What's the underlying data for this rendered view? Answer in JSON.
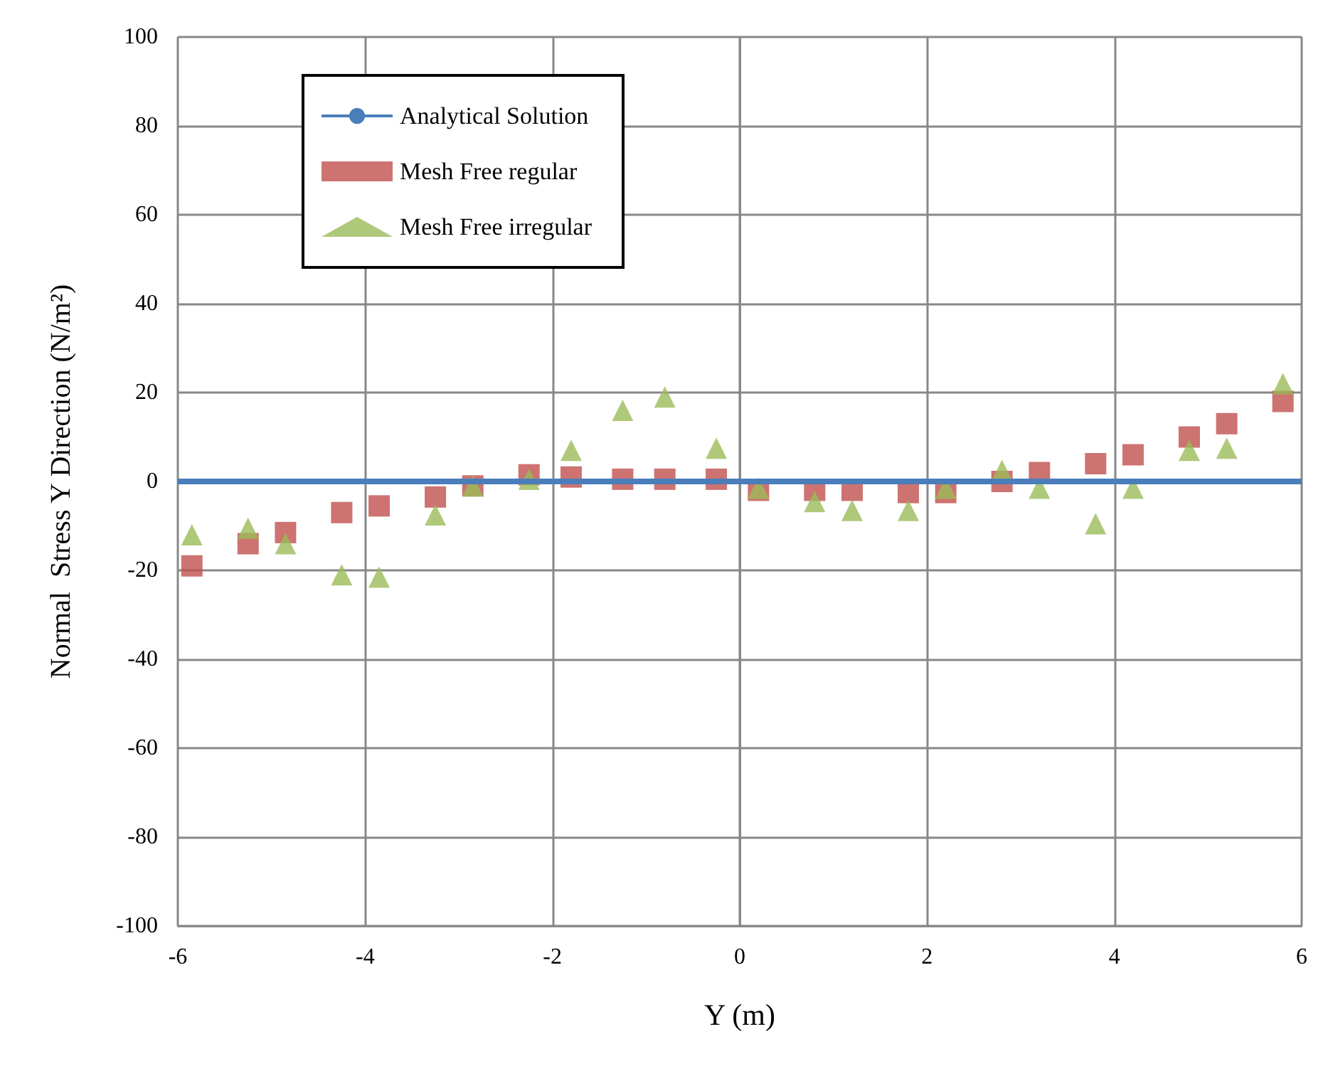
{
  "chart_data": {
    "type": "scatter",
    "xlabel": "Y (m)",
    "ylabel": "Normal  Stress Y Direction (N/m²)",
    "xlim": [
      -6,
      6
    ],
    "xticks": [
      -6,
      -4,
      -2,
      0,
      2,
      4,
      6
    ],
    "ylim": [
      -100,
      100
    ],
    "yticks": [
      -100,
      -80,
      -60,
      -40,
      -20,
      0,
      20,
      40,
      60,
      80,
      100
    ],
    "grid": true,
    "legend": "top left",
    "x": [
      -5.85,
      -5.25,
      -4.85,
      -4.25,
      -3.85,
      -3.25,
      -2.85,
      -2.25,
      -1.8,
      -1.25,
      -0.8,
      -0.25,
      0.2,
      0.8,
      1.2,
      1.8,
      2.2,
      2.8,
      3.2,
      3.8,
      4.2,
      4.8,
      5.2,
      5.8
    ],
    "series": [
      {
        "name": "Analytical Solution",
        "type": "line",
        "color": "#4a7ebb",
        "x": [
          -6,
          6
        ],
        "values": [
          0,
          0
        ],
        "marker": "none"
      },
      {
        "name": "Mesh Free regular",
        "color": "#c0504d",
        "marker": "square",
        "values": [
          -19,
          -14,
          -11.5,
          -7,
          -5.5,
          -3.5,
          -1,
          1.5,
          1,
          0.5,
          0.5,
          0.5,
          -2,
          -2,
          -2,
          -2.5,
          -2.5,
          0,
          2,
          4,
          6,
          10,
          13,
          18
        ]
      },
      {
        "name": "Mesh Free irregular",
        "color": "#9bbb59",
        "marker": "triangle",
        "values": [
          -12,
          -10.5,
          -14,
          -21,
          -21.5,
          -7.5,
          -1,
          0.5,
          7,
          16,
          19,
          7.5,
          -1.5,
          -4.5,
          -6.5,
          -6.5,
          -1.5,
          2.5,
          -1.5,
          -9.5,
          -1.5,
          7,
          7.5,
          22
        ]
      }
    ]
  }
}
